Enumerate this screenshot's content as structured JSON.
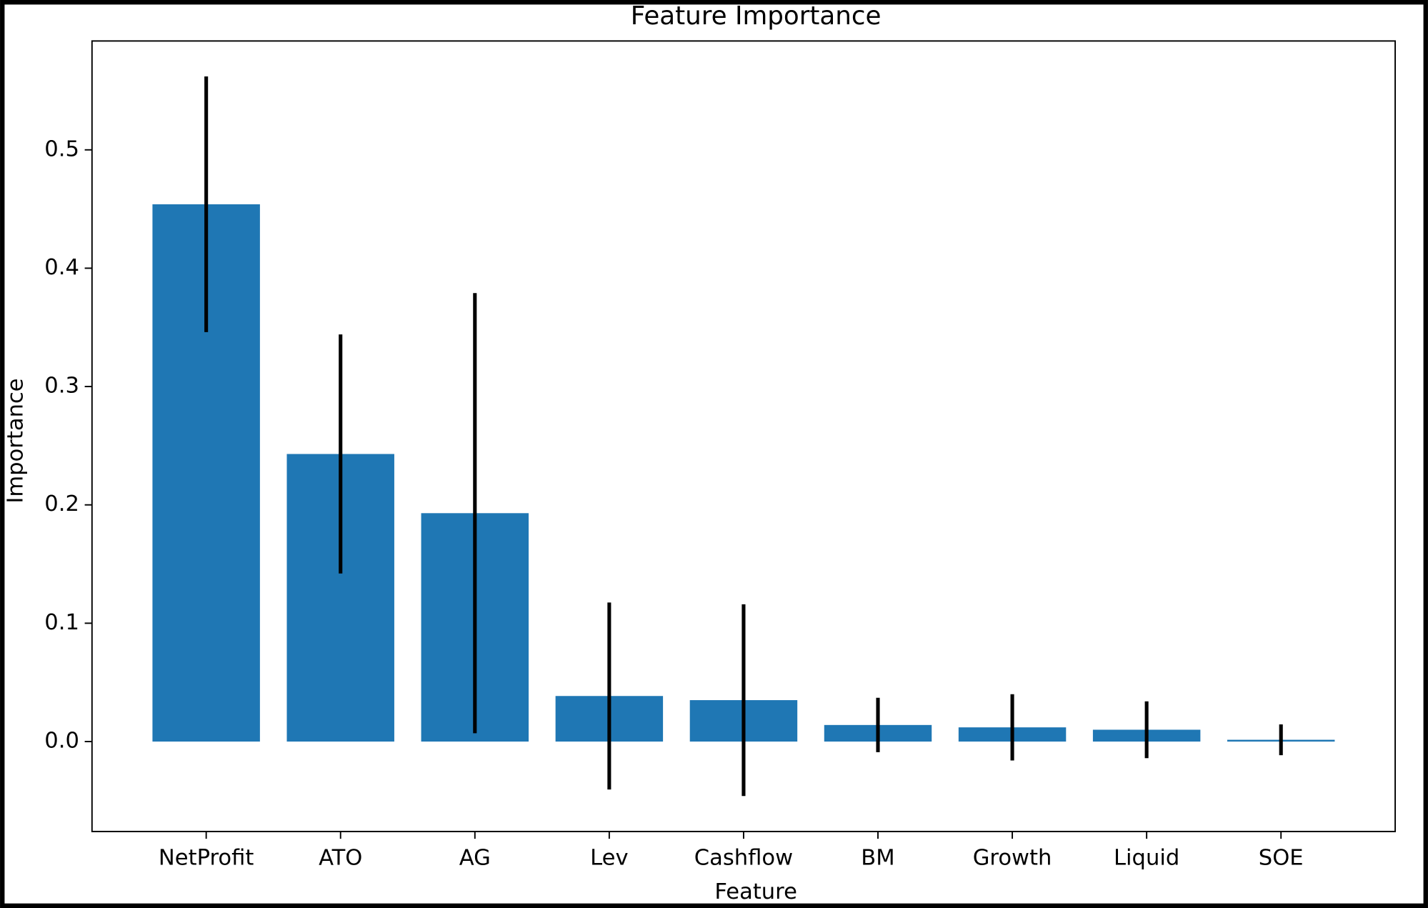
{
  "chart_data": {
    "type": "bar",
    "title": "Feature Importance",
    "x_label": "Feature",
    "y_label": "Importance",
    "categories": [
      "NetProfit",
      "ATO",
      "AG",
      "Lev",
      "Cashflow",
      "BM",
      "Growth",
      "Liquid",
      "SOE"
    ],
    "values": [
      0.454,
      0.243,
      0.193,
      0.0385,
      0.035,
      0.014,
      0.012,
      0.01,
      0.0015
    ],
    "errors": [
      0.108,
      0.101,
      0.186,
      0.079,
      0.081,
      0.023,
      0.028,
      0.024,
      0.013
    ],
    "color": "#1f77b4",
    "error_color": "#000000",
    "ylim": [
      -0.076,
      0.592
    ],
    "yticks": [
      {
        "value": 0,
        "label": "0.0"
      },
      0.1,
      0.2,
      0.3,
      0.4,
      0.5
    ]
  }
}
